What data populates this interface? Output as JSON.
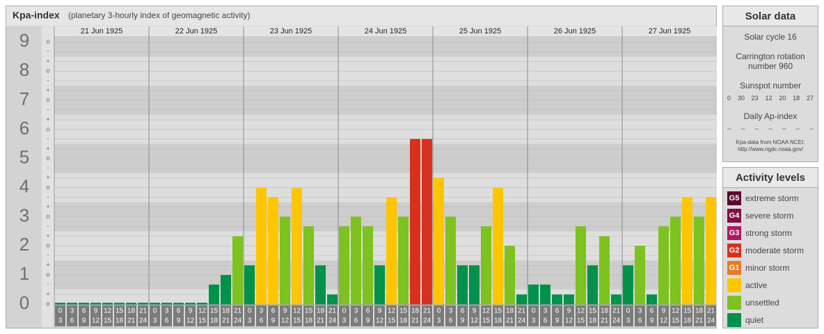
{
  "header": {
    "title": "Kpa-index",
    "subtitle": "(planetary 3-hourly index of geomagnetic activity)"
  },
  "chart_data": {
    "type": "bar",
    "days": [
      "21 Jun 1925",
      "22 Jun 1925",
      "23 Jun 1925",
      "24 Jun 1925",
      "25 Jun 1925",
      "26 Jun 1925",
      "27 Jun 1925"
    ],
    "slots": [
      [
        "0",
        "3"
      ],
      [
        "3",
        "6"
      ],
      [
        "6",
        "9"
      ],
      [
        "9",
        "12"
      ],
      [
        "12",
        "15"
      ],
      [
        "15",
        "18"
      ],
      [
        "18",
        "21"
      ],
      [
        "21",
        "24"
      ]
    ],
    "values": [
      0,
      0,
      0,
      0,
      0,
      0,
      0,
      0,
      0,
      0,
      0,
      0,
      0,
      0.67,
      1,
      2.33,
      1.33,
      4,
      3.67,
      3,
      4,
      2.67,
      1.33,
      0.33,
      2.67,
      3,
      2.67,
      1.33,
      3.67,
      3,
      5.67,
      5.67,
      4.33,
      3,
      1.33,
      1.33,
      2.67,
      4,
      2,
      0.33,
      0.67,
      0.67,
      0.33,
      0.33,
      2.67,
      1.33,
      2.33,
      0.33,
      1.33,
      2,
      0.33,
      2.67,
      3,
      3.67,
      3,
      3.67
    ],
    "colors": [
      "#00924a",
      "#00924a",
      "#00924a",
      "#00924a",
      "#00924a",
      "#00924a",
      "#00924a",
      "#00924a",
      "#00924a",
      "#00924a",
      "#00924a",
      "#00924a",
      "#00924a",
      "#00924a",
      "#00924a",
      "#7dc21e",
      "#00924a",
      "#ffc600",
      "#ffc600",
      "#7dc21e",
      "#ffc600",
      "#7dc21e",
      "#00924a",
      "#00924a",
      "#7dc21e",
      "#7dc21e",
      "#7dc21e",
      "#00924a",
      "#ffc600",
      "#7dc21e",
      "#d7311e",
      "#d7311e",
      "#ffc600",
      "#7dc21e",
      "#00924a",
      "#00924a",
      "#7dc21e",
      "#ffc600",
      "#7dc21e",
      "#00924a",
      "#00924a",
      "#00924a",
      "#00924a",
      "#00924a",
      "#7dc21e",
      "#00924a",
      "#7dc21e",
      "#00924a",
      "#00924a",
      "#7dc21e",
      "#00924a",
      "#7dc21e",
      "#7dc21e",
      "#ffc600",
      "#7dc21e",
      "#ffc600"
    ],
    "ylim": [
      0,
      9.2
    ],
    "yticks": [
      0,
      1,
      2,
      3,
      4,
      5,
      6,
      7,
      8,
      9
    ],
    "minor_yticks": [
      {
        "value": 0,
        "label": "o"
      },
      {
        "value": 0.33,
        "label": "+"
      },
      {
        "value": 0.67,
        "label": "-"
      },
      {
        "value": 1,
        "label": "o"
      },
      {
        "value": 1.33,
        "label": "+"
      },
      {
        "value": 1.67,
        "label": "-"
      },
      {
        "value": 2,
        "label": "o"
      },
      {
        "value": 2.33,
        "label": "+"
      },
      {
        "value": 2.67,
        "label": "-"
      },
      {
        "value": 3,
        "label": "o"
      },
      {
        "value": 3.33,
        "label": "+"
      },
      {
        "value": 3.67,
        "label": "-"
      },
      {
        "value": 4,
        "label": "o"
      },
      {
        "value": 4.33,
        "label": "+"
      },
      {
        "value": 4.67,
        "label": "-"
      },
      {
        "value": 5,
        "label": "o"
      },
      {
        "value": 5.33,
        "label": "+"
      },
      {
        "value": 5.67,
        "label": "-"
      },
      {
        "value": 6,
        "label": "o"
      },
      {
        "value": 6.33,
        "label": "+"
      },
      {
        "value": 6.67,
        "label": "-"
      },
      {
        "value": 7,
        "label": "o"
      },
      {
        "value": 7.33,
        "label": "+"
      },
      {
        "value": 7.67,
        "label": "-"
      },
      {
        "value": 8,
        "label": "o"
      },
      {
        "value": 8.33,
        "label": "+"
      },
      {
        "value": 8.67,
        "label": "-"
      },
      {
        "value": 9,
        "label": "o"
      }
    ],
    "grid": true
  },
  "solar_data": {
    "title": "Solar data",
    "cycle": "Solar cycle 16",
    "carrington": "Carrington rotation number 960",
    "sunspot_title": "Sunspot number",
    "sunspot": [
      0,
      30,
      23,
      12,
      20,
      18,
      27
    ],
    "ap_title": "Daily Ap-index",
    "ap": [
      "--",
      "--",
      "--",
      "--",
      "--",
      "--",
      "--"
    ],
    "source": "Kpa-data from NOAA NCEI:",
    "source_url": "http://www.ngdc.noaa.gov/"
  },
  "legend": {
    "title": "Activity levels",
    "items": [
      {
        "code": "G5",
        "label": "extreme storm",
        "color": "#5a0a2e"
      },
      {
        "code": "G4",
        "label": "severe storm",
        "color": "#7c1142"
      },
      {
        "code": "G3",
        "label": "strong storm",
        "color": "#b5155e"
      },
      {
        "code": "G2",
        "label": "moderate storm",
        "color": "#d7311e"
      },
      {
        "code": "G1",
        "label": "minor storm",
        "color": "#e57b26"
      },
      {
        "label": "active",
        "color": "#ffc600"
      },
      {
        "label": "unsettled",
        "color": "#7dc21e"
      },
      {
        "label": "quiet",
        "color": "#00924a"
      }
    ]
  }
}
